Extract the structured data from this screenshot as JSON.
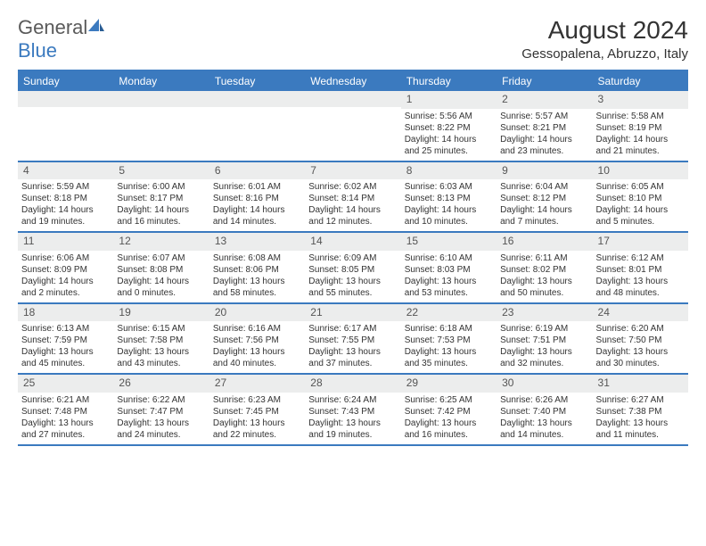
{
  "logo": {
    "text1": "General",
    "text2": "Blue"
  },
  "title": "August 2024",
  "subtitle": "Gessopalena, Abruzzo, Italy",
  "colors": {
    "accent": "#3b7abf",
    "stripe": "#eceded",
    "text": "#333333",
    "logo_gray": "#5a5a5a"
  },
  "day_headers": [
    "Sunday",
    "Monday",
    "Tuesday",
    "Wednesday",
    "Thursday",
    "Friday",
    "Saturday"
  ],
  "weeks": [
    [
      {
        "day": null
      },
      {
        "day": null
      },
      {
        "day": null
      },
      {
        "day": null
      },
      {
        "day": "1",
        "sunrise": "Sunrise: 5:56 AM",
        "sunset": "Sunset: 8:22 PM",
        "daylight": "Daylight: 14 hours and 25 minutes."
      },
      {
        "day": "2",
        "sunrise": "Sunrise: 5:57 AM",
        "sunset": "Sunset: 8:21 PM",
        "daylight": "Daylight: 14 hours and 23 minutes."
      },
      {
        "day": "3",
        "sunrise": "Sunrise: 5:58 AM",
        "sunset": "Sunset: 8:19 PM",
        "daylight": "Daylight: 14 hours and 21 minutes."
      }
    ],
    [
      {
        "day": "4",
        "sunrise": "Sunrise: 5:59 AM",
        "sunset": "Sunset: 8:18 PM",
        "daylight": "Daylight: 14 hours and 19 minutes."
      },
      {
        "day": "5",
        "sunrise": "Sunrise: 6:00 AM",
        "sunset": "Sunset: 8:17 PM",
        "daylight": "Daylight: 14 hours and 16 minutes."
      },
      {
        "day": "6",
        "sunrise": "Sunrise: 6:01 AM",
        "sunset": "Sunset: 8:16 PM",
        "daylight": "Daylight: 14 hours and 14 minutes."
      },
      {
        "day": "7",
        "sunrise": "Sunrise: 6:02 AM",
        "sunset": "Sunset: 8:14 PM",
        "daylight": "Daylight: 14 hours and 12 minutes."
      },
      {
        "day": "8",
        "sunrise": "Sunrise: 6:03 AM",
        "sunset": "Sunset: 8:13 PM",
        "daylight": "Daylight: 14 hours and 10 minutes."
      },
      {
        "day": "9",
        "sunrise": "Sunrise: 6:04 AM",
        "sunset": "Sunset: 8:12 PM",
        "daylight": "Daylight: 14 hours and 7 minutes."
      },
      {
        "day": "10",
        "sunrise": "Sunrise: 6:05 AM",
        "sunset": "Sunset: 8:10 PM",
        "daylight": "Daylight: 14 hours and 5 minutes."
      }
    ],
    [
      {
        "day": "11",
        "sunrise": "Sunrise: 6:06 AM",
        "sunset": "Sunset: 8:09 PM",
        "daylight": "Daylight: 14 hours and 2 minutes."
      },
      {
        "day": "12",
        "sunrise": "Sunrise: 6:07 AM",
        "sunset": "Sunset: 8:08 PM",
        "daylight": "Daylight: 14 hours and 0 minutes."
      },
      {
        "day": "13",
        "sunrise": "Sunrise: 6:08 AM",
        "sunset": "Sunset: 8:06 PM",
        "daylight": "Daylight: 13 hours and 58 minutes."
      },
      {
        "day": "14",
        "sunrise": "Sunrise: 6:09 AM",
        "sunset": "Sunset: 8:05 PM",
        "daylight": "Daylight: 13 hours and 55 minutes."
      },
      {
        "day": "15",
        "sunrise": "Sunrise: 6:10 AM",
        "sunset": "Sunset: 8:03 PM",
        "daylight": "Daylight: 13 hours and 53 minutes."
      },
      {
        "day": "16",
        "sunrise": "Sunrise: 6:11 AM",
        "sunset": "Sunset: 8:02 PM",
        "daylight": "Daylight: 13 hours and 50 minutes."
      },
      {
        "day": "17",
        "sunrise": "Sunrise: 6:12 AM",
        "sunset": "Sunset: 8:01 PM",
        "daylight": "Daylight: 13 hours and 48 minutes."
      }
    ],
    [
      {
        "day": "18",
        "sunrise": "Sunrise: 6:13 AM",
        "sunset": "Sunset: 7:59 PM",
        "daylight": "Daylight: 13 hours and 45 minutes."
      },
      {
        "day": "19",
        "sunrise": "Sunrise: 6:15 AM",
        "sunset": "Sunset: 7:58 PM",
        "daylight": "Daylight: 13 hours and 43 minutes."
      },
      {
        "day": "20",
        "sunrise": "Sunrise: 6:16 AM",
        "sunset": "Sunset: 7:56 PM",
        "daylight": "Daylight: 13 hours and 40 minutes."
      },
      {
        "day": "21",
        "sunrise": "Sunrise: 6:17 AM",
        "sunset": "Sunset: 7:55 PM",
        "daylight": "Daylight: 13 hours and 37 minutes."
      },
      {
        "day": "22",
        "sunrise": "Sunrise: 6:18 AM",
        "sunset": "Sunset: 7:53 PM",
        "daylight": "Daylight: 13 hours and 35 minutes."
      },
      {
        "day": "23",
        "sunrise": "Sunrise: 6:19 AM",
        "sunset": "Sunset: 7:51 PM",
        "daylight": "Daylight: 13 hours and 32 minutes."
      },
      {
        "day": "24",
        "sunrise": "Sunrise: 6:20 AM",
        "sunset": "Sunset: 7:50 PM",
        "daylight": "Daylight: 13 hours and 30 minutes."
      }
    ],
    [
      {
        "day": "25",
        "sunrise": "Sunrise: 6:21 AM",
        "sunset": "Sunset: 7:48 PM",
        "daylight": "Daylight: 13 hours and 27 minutes."
      },
      {
        "day": "26",
        "sunrise": "Sunrise: 6:22 AM",
        "sunset": "Sunset: 7:47 PM",
        "daylight": "Daylight: 13 hours and 24 minutes."
      },
      {
        "day": "27",
        "sunrise": "Sunrise: 6:23 AM",
        "sunset": "Sunset: 7:45 PM",
        "daylight": "Daylight: 13 hours and 22 minutes."
      },
      {
        "day": "28",
        "sunrise": "Sunrise: 6:24 AM",
        "sunset": "Sunset: 7:43 PM",
        "daylight": "Daylight: 13 hours and 19 minutes."
      },
      {
        "day": "29",
        "sunrise": "Sunrise: 6:25 AM",
        "sunset": "Sunset: 7:42 PM",
        "daylight": "Daylight: 13 hours and 16 minutes."
      },
      {
        "day": "30",
        "sunrise": "Sunrise: 6:26 AM",
        "sunset": "Sunset: 7:40 PM",
        "daylight": "Daylight: 13 hours and 14 minutes."
      },
      {
        "day": "31",
        "sunrise": "Sunrise: 6:27 AM",
        "sunset": "Sunset: 7:38 PM",
        "daylight": "Daylight: 13 hours and 11 minutes."
      }
    ]
  ]
}
